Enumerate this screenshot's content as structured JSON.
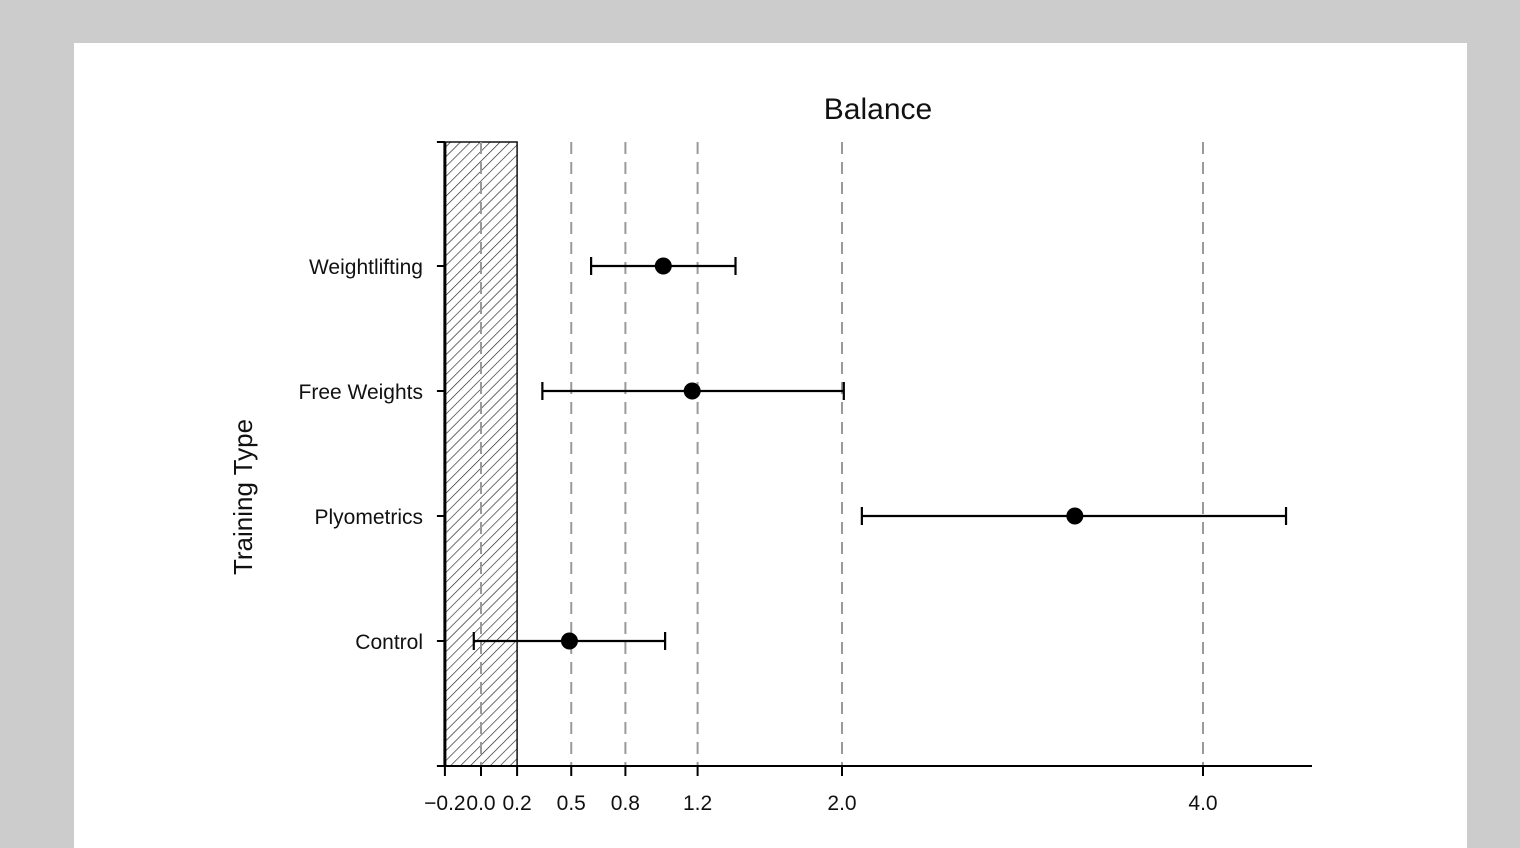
{
  "chart_data": {
    "type": "forest",
    "title": "Balance",
    "xlabel": "",
    "ylabel": "Training Type",
    "xlim": [
      -0.2,
      4.6
    ],
    "x_ticks": [
      -0.2,
      0.0,
      0.2,
      0.5,
      0.8,
      1.2,
      2.0,
      4.0
    ],
    "x_tick_labels": [
      "−0.2",
      "0.0",
      "0.2",
      "0.5",
      "0.8",
      "1.2",
      "2.0",
      "4.0"
    ],
    "reference_lines": [
      0.0,
      0.5,
      0.8,
      1.2,
      2.0,
      4.0
    ],
    "shaded_region": {
      "from": -0.2,
      "to": 0.2,
      "pattern": "hatched"
    },
    "categories": [
      "Weightlifting",
      "Free Weights",
      "Plyometrics",
      "Control"
    ],
    "series": [
      {
        "name": "Weightlifting",
        "estimate": 1.01,
        "lower": 0.61,
        "upper": 1.41
      },
      {
        "name": "Free Weights",
        "estimate": 1.17,
        "lower": 0.34,
        "upper": 2.01
      },
      {
        "name": "Plyometrics",
        "estimate": 3.29,
        "lower": 2.11,
        "upper": 4.46
      },
      {
        "name": "Control",
        "estimate": 0.49,
        "lower": -0.04,
        "upper": 1.02
      }
    ],
    "grid": false,
    "legend": null
  },
  "colors": {
    "background": "#cccccc",
    "panel": "#ffffff",
    "reference_line": "#999999",
    "marker": "#000000"
  }
}
